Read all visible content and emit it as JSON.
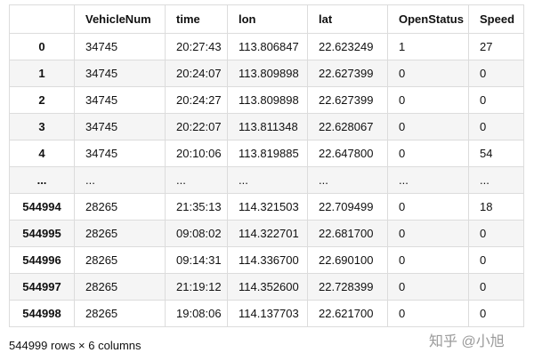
{
  "table": {
    "columns": [
      "VehicleNum",
      "time",
      "lon",
      "lat",
      "OpenStatus",
      "Speed"
    ],
    "rows": [
      {
        "index": "0",
        "cells": [
          "34745",
          "20:27:43",
          "113.806847",
          "22.623249",
          "1",
          "27"
        ]
      },
      {
        "index": "1",
        "cells": [
          "34745",
          "20:24:07",
          "113.809898",
          "22.627399",
          "0",
          "0"
        ]
      },
      {
        "index": "2",
        "cells": [
          "34745",
          "20:24:27",
          "113.809898",
          "22.627399",
          "0",
          "0"
        ]
      },
      {
        "index": "3",
        "cells": [
          "34745",
          "20:22:07",
          "113.811348",
          "22.628067",
          "0",
          "0"
        ]
      },
      {
        "index": "4",
        "cells": [
          "34745",
          "20:10:06",
          "113.819885",
          "22.647800",
          "0",
          "54"
        ]
      },
      {
        "index": "...",
        "cells": [
          "...",
          "...",
          "...",
          "...",
          "...",
          "..."
        ]
      },
      {
        "index": "544994",
        "cells": [
          "28265",
          "21:35:13",
          "114.321503",
          "22.709499",
          "0",
          "18"
        ]
      },
      {
        "index": "544995",
        "cells": [
          "28265",
          "09:08:02",
          "114.322701",
          "22.681700",
          "0",
          "0"
        ]
      },
      {
        "index": "544996",
        "cells": [
          "28265",
          "09:14:31",
          "114.336700",
          "22.690100",
          "0",
          "0"
        ]
      },
      {
        "index": "544997",
        "cells": [
          "28265",
          "21:19:12",
          "114.352600",
          "22.728399",
          "0",
          "0"
        ]
      },
      {
        "index": "544998",
        "cells": [
          "28265",
          "19:08:06",
          "114.137703",
          "22.621700",
          "0",
          "0"
        ]
      }
    ],
    "footer": "544999 rows × 6 columns"
  },
  "watermark": "知乎 @小旭"
}
